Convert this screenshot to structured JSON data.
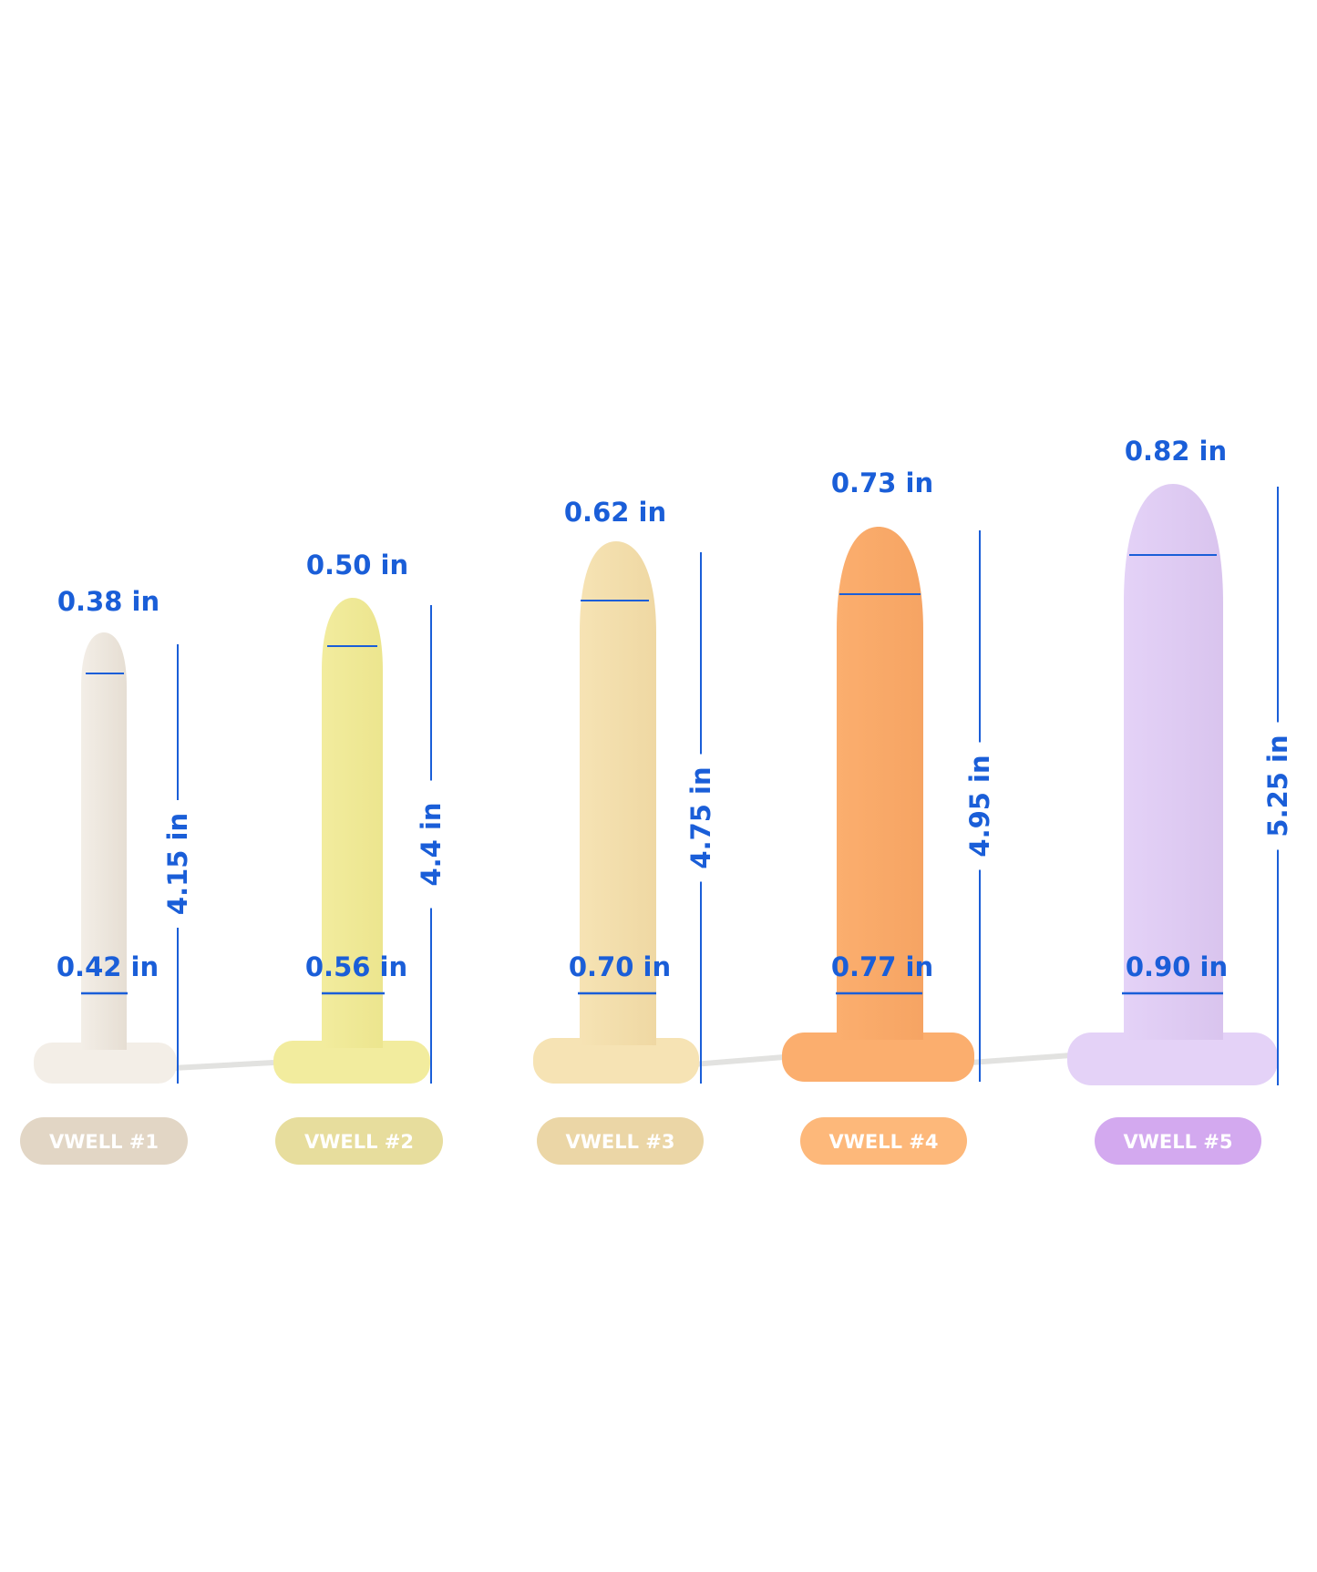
{
  "accent_color": "#1a5ed8",
  "dilators": [
    {
      "label": "VWELL #1",
      "tip_diameter": "0.38 in",
      "base_diameter": "0.42 in",
      "length": "4.15 in",
      "body_color": "#e6ded3",
      "base_color": "#f3eee7",
      "pill_color": "#e2d6c5"
    },
    {
      "label": "VWELL #2",
      "tip_diameter": "0.50 in",
      "base_diameter": "0.56 in",
      "length": "4.4 in",
      "body_color": "#ece58e",
      "base_color": "#f2ec9e",
      "pill_color": "#e7dd9d"
    },
    {
      "label": "VWELL #3",
      "tip_diameter": "0.62 in",
      "base_diameter": "0.70 in",
      "length": "4.75 in",
      "body_color": "#efd8a3",
      "base_color": "#f6e3b4",
      "pill_color": "#ebd6a6"
    },
    {
      "label": "VWELL #4",
      "tip_diameter": "0.73 in",
      "base_diameter": "0.77 in",
      "length": "4.95 in",
      "body_color": "#f6a463",
      "base_color": "#fbae6e",
      "pill_color": "#fdb87a"
    },
    {
      "label": "VWELL #5",
      "tip_diameter": "0.82 in",
      "base_diameter": "0.90 in",
      "length": "5.25 in",
      "body_color": "#d9c4ee",
      "base_color": "#e4d2f7",
      "pill_color": "#d3a9ef"
    }
  ]
}
